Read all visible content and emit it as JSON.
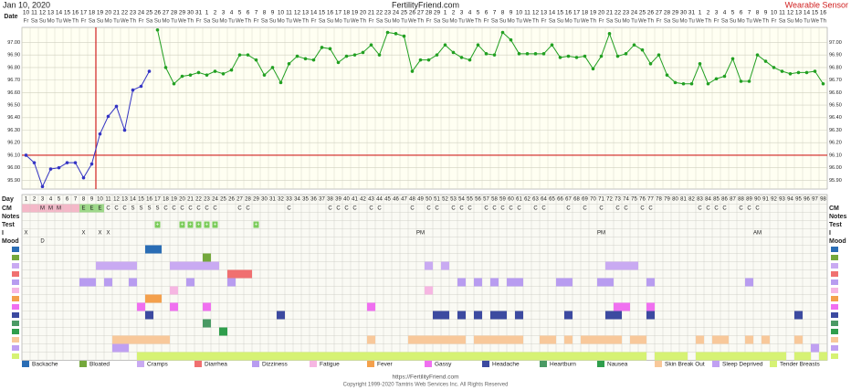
{
  "chart_data": {
    "type": "line",
    "title": "FertilityFriend.com",
    "date_title": "Jan 10, 2020",
    "sensor": "Wearable Sensor",
    "date_label": "Date",
    "days": [
      1,
      2,
      3,
      4,
      5,
      6,
      7,
      8,
      9,
      10,
      11,
      12,
      13,
      14,
      15,
      16,
      17,
      18,
      19,
      20,
      21,
      22,
      23,
      24,
      25,
      26,
      27,
      28,
      29,
      30,
      31,
      32,
      33,
      34,
      35,
      36,
      37,
      38,
      39,
      40,
      41,
      42,
      43,
      44,
      45,
      46,
      47,
      48,
      49,
      50,
      51,
      52,
      53,
      54,
      55,
      56,
      57,
      58,
      59,
      60,
      61,
      62,
      63,
      64,
      65,
      66,
      67,
      68,
      69,
      70,
      71,
      72,
      73,
      74,
      75,
      76,
      77,
      78,
      79,
      80,
      81,
      82,
      83,
      84,
      85,
      86,
      87,
      88,
      89,
      90,
      91,
      92,
      93,
      94,
      95,
      96,
      97,
      98
    ],
    "dates": [
      10,
      11,
      12,
      13,
      14,
      15,
      16,
      17,
      18,
      19,
      20,
      21,
      22,
      23,
      24,
      25,
      26,
      27,
      28,
      29,
      30,
      31,
      1,
      2,
      3,
      4,
      5,
      6,
      7,
      8,
      9,
      10,
      11,
      12,
      13,
      14,
      15,
      16,
      17,
      18,
      19,
      20,
      21,
      22,
      23,
      24,
      25,
      26,
      27,
      28,
      29,
      1,
      2,
      3,
      4,
      5,
      6,
      7,
      8,
      9,
      10,
      11,
      12,
      13,
      14,
      15,
      16,
      17,
      18,
      19,
      20,
      21,
      22,
      23,
      24,
      25,
      26,
      27,
      28,
      29,
      30,
      31,
      1,
      2,
      3,
      4,
      5,
      6,
      7,
      8,
      9,
      10,
      11,
      12,
      13,
      14,
      15,
      16
    ],
    "weekdays": [
      "Fr",
      "Sa",
      "Su",
      "Mo",
      "Tu",
      "We",
      "Th",
      "Fr",
      "Sa",
      "Su",
      "Mo",
      "Tu",
      "We",
      "Th",
      "Fr",
      "Sa",
      "Su",
      "Mo",
      "Tu",
      "We",
      "Th",
      "Fr",
      "Sa",
      "Su",
      "Mo",
      "Tu",
      "We",
      "Th",
      "Fr",
      "Sa",
      "Su",
      "Mo",
      "Tu",
      "We",
      "Th",
      "Fr",
      "Sa",
      "Su",
      "Mo",
      "Tu",
      "We",
      "Th",
      "Fr",
      "Sa",
      "Su",
      "Mo",
      "Tu",
      "We",
      "Th",
      "Fr",
      "Sa",
      "Su",
      "Mo",
      "Tu",
      "We",
      "Th",
      "Fr",
      "Sa",
      "Su",
      "Mo",
      "Tu",
      "We",
      "Th",
      "Fr",
      "Sa",
      "Su",
      "Mo",
      "Tu",
      "We",
      "Th",
      "Fr",
      "Sa",
      "Su",
      "Mo",
      "Tu",
      "We",
      "Th",
      "Fr",
      "Sa",
      "Su",
      "Mo",
      "Tu",
      "We",
      "Th",
      "Fr",
      "Sa",
      "Su",
      "Mo",
      "Tu",
      "We",
      "Th",
      "Fr",
      "Sa",
      "Su",
      "Mo",
      "Tu",
      "We",
      "Th"
    ],
    "ylim": [
      95.83,
      97.12
    ],
    "yticks": [
      {
        "value": 95.9,
        "label": "95.90"
      },
      {
        "value": 96,
        "label": "96.00"
      },
      {
        "value": 96.1,
        "label": "96.10"
      },
      {
        "value": 96.2,
        "label": "96.20"
      },
      {
        "value": 96.3,
        "label": "96.30"
      },
      {
        "value": 96.4,
        "label": "96.40"
      },
      {
        "value": 96.5,
        "label": "96.50"
      },
      {
        "value": 96.6,
        "label": "96.60"
      },
      {
        "value": 96.7,
        "label": "96.70"
      },
      {
        "value": 96.8,
        "label": "96.80"
      },
      {
        "value": 96.9,
        "label": "96.90"
      },
      {
        "value": 97,
        "label": "97.00"
      }
    ],
    "grid": true,
    "coverline": 96.1,
    "ovulation_day": 9,
    "series": [
      {
        "name": "Pre-ovulation",
        "color": "#3434c4",
        "values": [
          96.1,
          96.04,
          95.85,
          95.99,
          96.0,
          96.04,
          96.04,
          95.92,
          96.03,
          96.27,
          96.41,
          96.49,
          96.3,
          96.62,
          96.65,
          96.77,
          null,
          null,
          null,
          null,
          null,
          null,
          null,
          null,
          null,
          null,
          null,
          null,
          null,
          null,
          null,
          null,
          null,
          null,
          null,
          null,
          null,
          null,
          null,
          null,
          null,
          null,
          null,
          null,
          null,
          null,
          null,
          null,
          null,
          null,
          null,
          null,
          null,
          null,
          null,
          null,
          null,
          null,
          null,
          null,
          null,
          null,
          null,
          null,
          null,
          null,
          null,
          null,
          null,
          null,
          null,
          null,
          null,
          null,
          null,
          null,
          null,
          null,
          null,
          null,
          null,
          null,
          null,
          null,
          null,
          null,
          null,
          null,
          null,
          null,
          null,
          null,
          null,
          null,
          null,
          null,
          null,
          null
        ]
      },
      {
        "name": "Post-ovulation",
        "color": "#22a022",
        "values": [
          null,
          null,
          null,
          null,
          null,
          null,
          null,
          null,
          null,
          null,
          null,
          null,
          null,
          null,
          null,
          null,
          97.1,
          96.8,
          96.67,
          96.73,
          96.74,
          96.76,
          96.74,
          96.77,
          96.75,
          96.78,
          96.9,
          96.9,
          96.86,
          96.74,
          96.8,
          96.68,
          96.83,
          96.89,
          96.87,
          96.86,
          96.96,
          96.95,
          96.84,
          96.89,
          96.9,
          96.92,
          96.98,
          96.9,
          97.08,
          97.07,
          97.05,
          96.77,
          96.86,
          96.86,
          96.9,
          96.98,
          96.92,
          96.88,
          96.86,
          96.98,
          96.91,
          96.9,
          97.08,
          97.02,
          96.91,
          96.91,
          96.91,
          96.91,
          96.98,
          96.88,
          96.89,
          96.88,
          96.89,
          96.79,
          96.89,
          97.07,
          96.89,
          96.91,
          96.98,
          96.94,
          96.83,
          96.9,
          96.74,
          96.68,
          96.67,
          96.67,
          96.83,
          96.67,
          96.71,
          96.73,
          96.87,
          96.69,
          96.69,
          96.9,
          96.85,
          96.8,
          96.77,
          96.75,
          96.76,
          96.76,
          96.77,
          96.67
        ]
      }
    ],
    "row_labels": [
      "Day",
      "CM",
      "Notes",
      "Test",
      "I",
      "Mood"
    ],
    "period_days": [
      1,
      2,
      3,
      4,
      5,
      6,
      7
    ],
    "cm": [
      null,
      null,
      "M",
      "M",
      "M",
      null,
      null,
      "E",
      "E",
      "E",
      "C",
      "C",
      "C",
      "S",
      "S",
      "S",
      "S",
      "C",
      "C",
      "C",
      "C",
      "C",
      "C",
      "C",
      null,
      null,
      "C",
      "C",
      null,
      null,
      null,
      null,
      "C",
      null,
      null,
      null,
      null,
      "C",
      "C",
      "C",
      "C",
      null,
      "C",
      "C",
      null,
      null,
      null,
      "C",
      null,
      "C",
      "C",
      null,
      "C",
      "C",
      "C",
      null,
      "C",
      "C",
      "C",
      "C",
      "C",
      null,
      "C",
      "C",
      null,
      null,
      "C",
      null,
      "C",
      null,
      "C",
      null,
      "C",
      "C",
      null,
      "C",
      "C",
      null,
      null,
      null,
      null,
      null,
      "C",
      "C",
      "C",
      "C",
      null,
      "C",
      "C",
      "C",
      null,
      null,
      null,
      null,
      null,
      null,
      null,
      null
    ],
    "tests": {
      "label": "+",
      "days": [
        17,
        20,
        21,
        22,
        23,
        24,
        29
      ]
    },
    "intercourse": [
      {
        "day": 1,
        "label": "X"
      },
      {
        "day": 8,
        "label": "X"
      },
      {
        "day": 10,
        "label": "X"
      },
      {
        "day": 11,
        "label": "X"
      },
      {
        "day": 49,
        "label": "PM"
      },
      {
        "day": 71,
        "label": "PM"
      },
      {
        "day": 90,
        "label": "AM"
      }
    ],
    "mood": [
      {
        "day": 3,
        "label": "D"
      }
    ],
    "symptoms": [
      {
        "name": "Backache",
        "color": "#2a6db5",
        "days": [
          16,
          17
        ]
      },
      {
        "name": "Bloated",
        "color": "#74a83c",
        "days": [
          23
        ]
      },
      {
        "name": "Cramps",
        "color": "#c9aaf2",
        "days": [
          10,
          11,
          12,
          13,
          14,
          19,
          20,
          21,
          22,
          23,
          24,
          50,
          52,
          72,
          73,
          74,
          75
        ]
      },
      {
        "name": "Diarrhea",
        "color": "#f07070",
        "days": [
          26,
          27,
          28
        ]
      },
      {
        "name": "Dizziness",
        "color": "#b89cf0",
        "days": [
          8,
          9,
          11,
          14,
          21,
          26,
          54,
          56,
          58,
          60,
          61,
          66,
          67,
          71,
          72,
          77,
          89
        ]
      },
      {
        "name": "Fatigue",
        "color": "#f6b6e2",
        "days": [
          19,
          50
        ]
      },
      {
        "name": "Fever",
        "color": "#f4a04c",
        "days": [
          16,
          17
        ]
      },
      {
        "name": "Gassy",
        "color": "#f070f0",
        "days": [
          15,
          19,
          23,
          43,
          73,
          74,
          77
        ]
      },
      {
        "name": "Headache",
        "color": "#3c4aa0",
        "days": [
          16,
          32,
          51,
          52,
          54,
          56,
          58,
          59,
          61,
          67,
          72,
          73,
          77,
          95
        ]
      },
      {
        "name": "Heartburn",
        "color": "#4a9a64",
        "days": [
          23
        ]
      },
      {
        "name": "Nausea",
        "color": "#2f9e4c",
        "days": [
          25
        ]
      },
      {
        "name": "Skin Break Out",
        "color": "#f8c89a",
        "days": [
          12,
          13,
          14,
          15,
          16,
          17,
          18,
          43,
          48,
          49,
          50,
          51,
          52,
          53,
          54,
          56,
          57,
          58,
          59,
          60,
          61,
          64,
          65,
          67,
          69,
          70,
          71,
          72,
          73,
          75,
          76,
          83,
          85,
          86,
          89,
          91,
          95
        ]
      },
      {
        "name": "Sleep Deprived",
        "color": "#c0a0f2",
        "days": [
          12,
          13,
          97
        ]
      },
      {
        "name": "Tender Breasts",
        "color": "#d6f274",
        "days": [
          15,
          16,
          17,
          18,
          19,
          20,
          21,
          22,
          23,
          24,
          25,
          26,
          27,
          28,
          29,
          30,
          31,
          32,
          33,
          34,
          35,
          36,
          37,
          38,
          39,
          40,
          41,
          42,
          43,
          44,
          45,
          46,
          47,
          48,
          49,
          50,
          51,
          52,
          53,
          54,
          55,
          56,
          57,
          58,
          59,
          60,
          61,
          62,
          63,
          64,
          65,
          66,
          67,
          68,
          69,
          70,
          71,
          72,
          73,
          74,
          75,
          76,
          78,
          79,
          80,
          81,
          83,
          84,
          85,
          86,
          87,
          88,
          89,
          90,
          91,
          92,
          93,
          95,
          96,
          98
        ]
      }
    ],
    "footer_url": "https://FertilityFriend.com",
    "copyright": "Copyright 1999-2020 Tamtris Web Services Inc. All Rights Reserved"
  }
}
